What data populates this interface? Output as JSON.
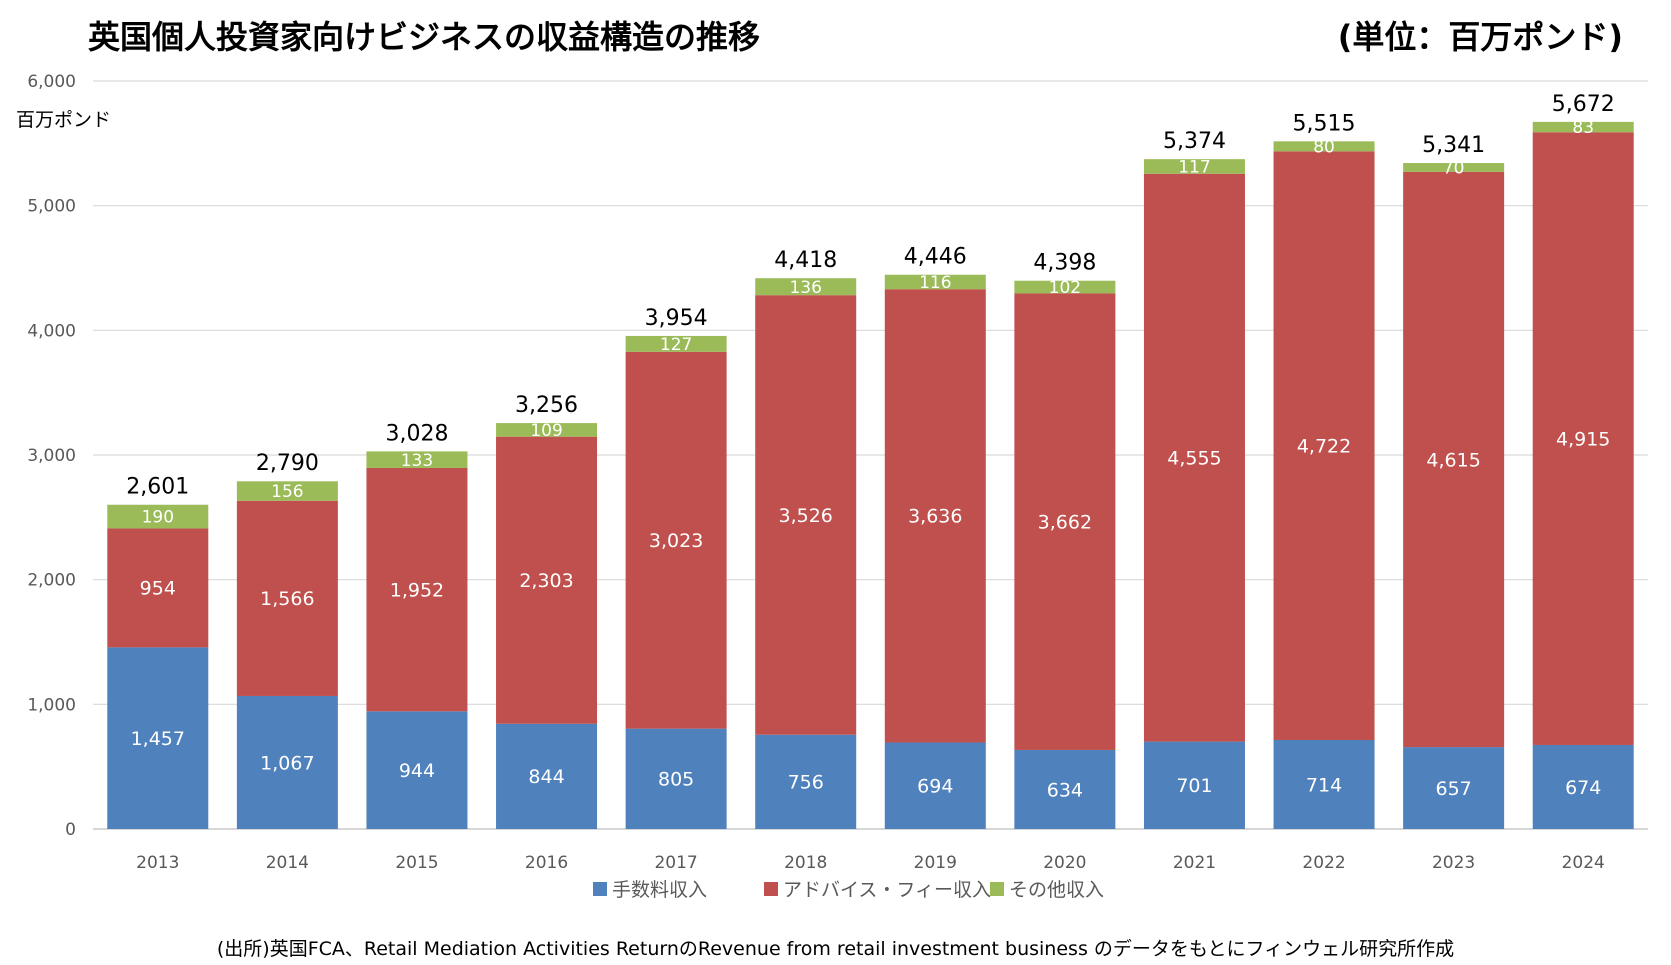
{
  "page_title": "英国個人投資家向けビジネスの収益構造の推移",
  "unit_label": "(単位：百万ポンド)",
  "source_note": "(出所)英国FCA、Retail Mediation Activities ReturnのRevenue from retail investment business のデータをもとにフィンウェル研究所作成",
  "colors": {
    "fee": "#4F81BD",
    "advice": "#C0504D",
    "other": "#9BBB59",
    "grid": "#D9D9D9",
    "axis_text": "#595959"
  },
  "chart_data": {
    "type": "bar",
    "stacked": true,
    "title": "英国個人投資家向けビジネスの収益構造の推移",
    "ylabel": "百万ポンド",
    "xlabel": "",
    "ylim": [
      0,
      6000
    ],
    "yticks": [
      0,
      1000,
      2000,
      3000,
      4000,
      5000,
      6000
    ],
    "ytick_labels": [
      "0",
      "1,000",
      "2,000",
      "3,000",
      "4,000",
      "5,000",
      "6,000"
    ],
    "grid": true,
    "legend_position": "bottom",
    "categories": [
      "2013",
      "2014",
      "2015",
      "2016",
      "2017",
      "2018",
      "2019",
      "2020",
      "2021",
      "2022",
      "2023",
      "2024"
    ],
    "series": [
      {
        "name": "手数料収入",
        "color_key": "fee",
        "values": [
          1457,
          1067,
          944,
          844,
          805,
          756,
          694,
          634,
          701,
          714,
          657,
          674
        ],
        "labels": [
          "1,457",
          "1,067",
          "944",
          "844",
          "805",
          "756",
          "694",
          "634",
          "701",
          "714",
          "657",
          "674"
        ]
      },
      {
        "name": "アドバイス・フィー収入",
        "color_key": "advice",
        "values": [
          954,
          1566,
          1952,
          2303,
          3023,
          3526,
          3636,
          3662,
          4555,
          4722,
          4615,
          4915
        ],
        "labels": [
          "954",
          "1,566",
          "1,952",
          "2,303",
          "3,023",
          "3,526",
          "3,636",
          "3,662",
          "4,555",
          "4,722",
          "4,615",
          "4,915"
        ]
      },
      {
        "name": "その他収入",
        "color_key": "other",
        "values": [
          190,
          156,
          133,
          109,
          127,
          136,
          116,
          102,
          117,
          80,
          70,
          83
        ],
        "labels": [
          "190",
          "156",
          "133",
          "109",
          "127",
          "136",
          "116",
          "102",
          "117",
          "80",
          "70",
          "83"
        ]
      }
    ],
    "totals": [
      2601,
      2790,
      3028,
      3256,
      3954,
      4418,
      4446,
      4398,
      5374,
      5515,
      5341,
      5672
    ],
    "total_labels": [
      "2,601",
      "2,790",
      "3,028",
      "3,256",
      "3,954",
      "4,418",
      "4,446",
      "4,398",
      "5,374",
      "5,515",
      "5,341",
      "5,672"
    ]
  }
}
